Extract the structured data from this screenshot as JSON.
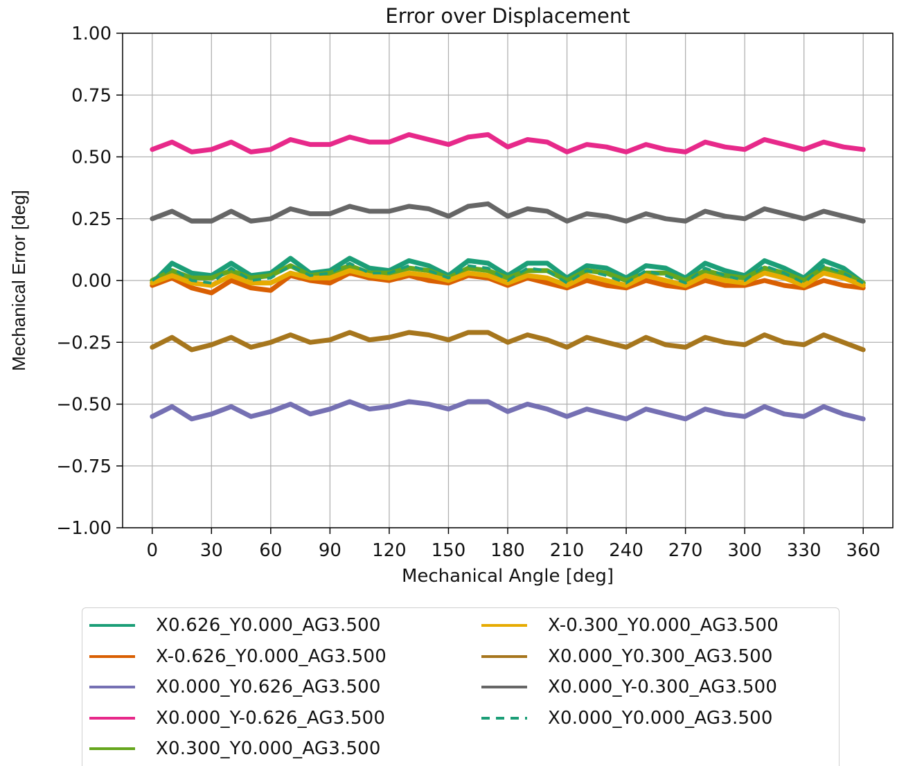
{
  "chart_data": {
    "type": "line",
    "title": "Error over Displacement",
    "xlabel": "Mechanical Angle [deg]",
    "ylabel": "Mechanical Error [deg]",
    "xlim": [
      -15,
      375
    ],
    "ylim": [
      -1.0,
      1.0
    ],
    "x_ticks": [
      "0",
      "30",
      "60",
      "90",
      "120",
      "150",
      "180",
      "210",
      "240",
      "270",
      "300",
      "330",
      "360"
    ],
    "y_ticks": [
      "1.00",
      "0.75",
      "0.50",
      "0.25",
      "0.00",
      "−0.25",
      "−0.50",
      "−0.75",
      "−1.00"
    ],
    "y_tick_values": [
      1.0,
      0.75,
      0.5,
      0.25,
      0.0,
      -0.25,
      -0.5,
      -0.75,
      -1.0
    ],
    "grid": true,
    "legend_placement": "below",
    "x": [
      0,
      10,
      20,
      30,
      40,
      50,
      60,
      70,
      80,
      90,
      100,
      110,
      120,
      130,
      140,
      150,
      160,
      170,
      180,
      190,
      200,
      210,
      220,
      230,
      240,
      250,
      260,
      270,
      280,
      290,
      300,
      310,
      320,
      330,
      340,
      350,
      360
    ],
    "series": [
      {
        "name": "X0.626_Y0.000_AG3.500",
        "color": "#1b9e77",
        "dash": false,
        "values": [
          -0.01,
          0.07,
          0.03,
          0.02,
          0.07,
          0.02,
          0.03,
          0.09,
          0.03,
          0.04,
          0.09,
          0.05,
          0.04,
          0.08,
          0.06,
          0.02,
          0.08,
          0.07,
          0.02,
          0.07,
          0.07,
          0.01,
          0.06,
          0.05,
          0.01,
          0.06,
          0.05,
          0.01,
          0.07,
          0.04,
          0.02,
          0.08,
          0.05,
          0.01,
          0.08,
          0.05,
          -0.01
        ]
      },
      {
        "name": "X-0.626_Y0.000_AG3.500",
        "color": "#d95f02",
        "dash": false,
        "values": [
          -0.02,
          0.01,
          -0.03,
          -0.05,
          0.0,
          -0.03,
          -0.04,
          0.02,
          0.0,
          -0.01,
          0.03,
          0.01,
          0.0,
          0.02,
          0.0,
          -0.01,
          0.02,
          0.01,
          -0.02,
          0.01,
          -0.01,
          -0.03,
          0.0,
          -0.02,
          -0.03,
          0.0,
          -0.02,
          -0.03,
          0.0,
          -0.02,
          -0.02,
          0.0,
          -0.02,
          -0.03,
          0.0,
          -0.02,
          -0.03
        ]
      },
      {
        "name": "X0.000_Y0.626_AG3.500",
        "color": "#7570b3",
        "dash": false,
        "values": [
          -0.55,
          -0.51,
          -0.56,
          -0.54,
          -0.51,
          -0.55,
          -0.53,
          -0.5,
          -0.54,
          -0.52,
          -0.49,
          -0.52,
          -0.51,
          -0.49,
          -0.5,
          -0.52,
          -0.49,
          -0.49,
          -0.53,
          -0.5,
          -0.52,
          -0.55,
          -0.52,
          -0.54,
          -0.56,
          -0.52,
          -0.54,
          -0.56,
          -0.52,
          -0.54,
          -0.55,
          -0.51,
          -0.54,
          -0.55,
          -0.51,
          -0.54,
          -0.56
        ]
      },
      {
        "name": "X0.000_Y-0.626_AG3.500",
        "color": "#e7298a",
        "dash": false,
        "values": [
          0.53,
          0.56,
          0.52,
          0.53,
          0.56,
          0.52,
          0.53,
          0.57,
          0.55,
          0.55,
          0.58,
          0.56,
          0.56,
          0.59,
          0.57,
          0.55,
          0.58,
          0.59,
          0.54,
          0.57,
          0.56,
          0.52,
          0.55,
          0.54,
          0.52,
          0.55,
          0.53,
          0.52,
          0.56,
          0.54,
          0.53,
          0.57,
          0.55,
          0.53,
          0.56,
          0.54,
          0.53
        ]
      },
      {
        "name": "X0.300_Y0.000_AG3.500",
        "color": "#66a61e",
        "dash": false,
        "values": [
          0.0,
          0.04,
          0.01,
          0.01,
          0.04,
          0.01,
          0.02,
          0.06,
          0.02,
          0.03,
          0.06,
          0.03,
          0.03,
          0.05,
          0.04,
          0.01,
          0.05,
          0.04,
          0.01,
          0.04,
          0.04,
          0.0,
          0.04,
          0.03,
          0.0,
          0.03,
          0.03,
          0.0,
          0.04,
          0.02,
          0.01,
          0.05,
          0.03,
          0.0,
          0.05,
          0.03,
          -0.01
        ]
      },
      {
        "name": "X-0.300_Y0.000_AG3.500",
        "color": "#e6ab02",
        "dash": false,
        "values": [
          -0.01,
          0.02,
          -0.01,
          -0.02,
          0.02,
          -0.01,
          -0.01,
          0.03,
          0.01,
          0.01,
          0.04,
          0.02,
          0.01,
          0.03,
          0.02,
          0.0,
          0.03,
          0.02,
          -0.01,
          0.02,
          0.01,
          -0.02,
          0.02,
          0.0,
          -0.02,
          0.02,
          0.0,
          -0.02,
          0.02,
          0.0,
          -0.01,
          0.03,
          0.01,
          -0.02,
          0.03,
          0.01,
          -0.02
        ]
      },
      {
        "name": "X0.000_Y0.300_AG3.500",
        "color": "#a6761d",
        "dash": false,
        "values": [
          -0.27,
          -0.23,
          -0.28,
          -0.26,
          -0.23,
          -0.27,
          -0.25,
          -0.22,
          -0.25,
          -0.24,
          -0.21,
          -0.24,
          -0.23,
          -0.21,
          -0.22,
          -0.24,
          -0.21,
          -0.21,
          -0.25,
          -0.22,
          -0.24,
          -0.27,
          -0.23,
          -0.25,
          -0.27,
          -0.23,
          -0.26,
          -0.27,
          -0.23,
          -0.25,
          -0.26,
          -0.22,
          -0.25,
          -0.26,
          -0.22,
          -0.25,
          -0.28
        ]
      },
      {
        "name": "X0.000_Y-0.300_AG3.500",
        "color": "#666666",
        "dash": false,
        "values": [
          0.25,
          0.28,
          0.24,
          0.24,
          0.28,
          0.24,
          0.25,
          0.29,
          0.27,
          0.27,
          0.3,
          0.28,
          0.28,
          0.3,
          0.29,
          0.26,
          0.3,
          0.31,
          0.26,
          0.29,
          0.28,
          0.24,
          0.27,
          0.26,
          0.24,
          0.27,
          0.25,
          0.24,
          0.28,
          0.26,
          0.25,
          0.29,
          0.27,
          0.25,
          0.28,
          0.26,
          0.24
        ]
      },
      {
        "name": "X0.000_Y0.000_AG3.500",
        "color": "#1b9e77",
        "dash": true,
        "values": [
          0.0,
          0.05,
          0.0,
          -0.01,
          0.05,
          0.0,
          0.01,
          0.06,
          0.02,
          0.03,
          0.07,
          0.03,
          0.03,
          0.06,
          0.04,
          0.01,
          0.06,
          0.05,
          0.0,
          0.05,
          0.04,
          -0.01,
          0.04,
          0.02,
          -0.01,
          0.04,
          0.02,
          -0.01,
          0.05,
          0.02,
          0.0,
          0.06,
          0.03,
          -0.01,
          0.06,
          0.03,
          -0.01
        ]
      }
    ]
  }
}
